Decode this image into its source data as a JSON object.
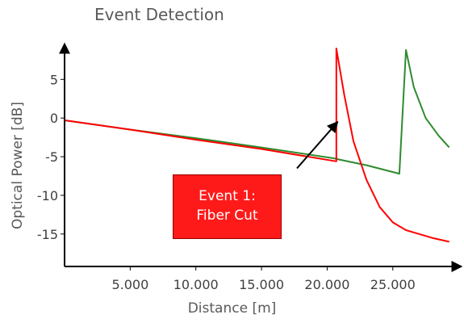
{
  "chart_data": {
    "type": "line",
    "title": "Event Detection",
    "xlabel": "Distance [m]",
    "ylabel": "Optical Power [dB]",
    "xlim": [
      0,
      29500
    ],
    "ylim": [
      -19.2,
      9
    ],
    "xticks": [
      5000,
      10000,
      15000,
      20000,
      25000
    ],
    "xtick_labels": [
      "5.000",
      "10.000",
      "15.000",
      "20.000",
      "25.000"
    ],
    "yticks": [
      5,
      0,
      -5,
      -10,
      -15
    ],
    "ytick_labels": [
      "5",
      "0",
      "-5",
      "-10",
      "-15"
    ],
    "grid": false,
    "series": [
      {
        "color": "#2e8b2e",
        "points": [
          [
            0,
            -0.3
          ],
          [
            5000,
            -1.5
          ],
          [
            10000,
            -2.6
          ],
          [
            15000,
            -3.8
          ],
          [
            20500,
            -5.2
          ],
          [
            21000,
            -5.4
          ],
          [
            23000,
            -6.1
          ],
          [
            25500,
            -7.2
          ],
          [
            26000,
            8.8
          ],
          [
            26600,
            4.0
          ],
          [
            27500,
            0.0
          ],
          [
            28500,
            -2.3
          ],
          [
            29300,
            -3.8
          ]
        ]
      },
      {
        "color": "#ff0000",
        "points": [
          [
            0,
            -0.3
          ],
          [
            5000,
            -1.5
          ],
          [
            10000,
            -2.8
          ],
          [
            15000,
            -4.0
          ],
          [
            20700,
            -5.6
          ],
          [
            20700,
            9.0
          ],
          [
            21300,
            3.0
          ],
          [
            22000,
            -3.0
          ],
          [
            23000,
            -8.0
          ],
          [
            24000,
            -11.5
          ],
          [
            25000,
            -13.5
          ],
          [
            26000,
            -14.5
          ],
          [
            27000,
            -15.0
          ],
          [
            28000,
            -15.5
          ],
          [
            29300,
            -16.0
          ]
        ]
      }
    ],
    "annotations": [
      {
        "text": "Event 1:\nFiber Cut",
        "arrow_from": [
          17700,
          -6.5
        ],
        "arrow_to": [
          20800,
          -0.5
        ]
      }
    ]
  },
  "annotation": {
    "line1": "Event 1:",
    "line2": "Fiber Cut"
  }
}
